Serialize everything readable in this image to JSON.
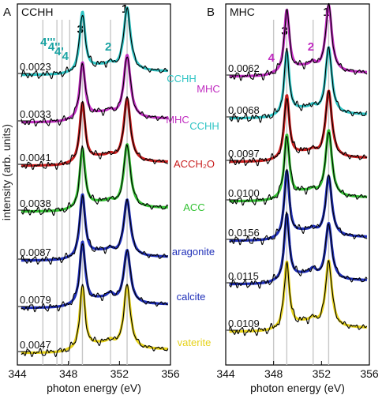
{
  "figure": {
    "ylabel": "intensity (arb. units)",
    "xlabel": "photon energy (eV)"
  },
  "chart_data": [
    {
      "type": "line",
      "panel_letter": "A",
      "panel_title": "CCHH",
      "xlim": [
        344,
        356
      ],
      "x_ticks": [
        344,
        348,
        352,
        356
      ],
      "xlabel": "photon energy (eV)",
      "ylabel": "intensity (arb. units)",
      "gridlines_x": [
        346.0,
        347.1,
        347.5,
        348.1,
        349.1,
        351.3,
        352.6
      ],
      "peak_labels": [
        {
          "text": "1",
          "x": 352.6,
          "color": "#000000"
        },
        {
          "text": "2",
          "x": 351.3,
          "color": "#1aa3a3"
        },
        {
          "text": "3",
          "x": 349.1,
          "color": "#000000"
        },
        {
          "text": "4",
          "x": 348.0,
          "color": "#1aa3a3"
        },
        {
          "text": "4'",
          "x": 347.4,
          "color": "#1aa3a3"
        },
        {
          "text": "4''",
          "x": 346.9,
          "color": "#1aa3a3"
        },
        {
          "text": "4'''",
          "x": 346.3,
          "color": "#1aa3a3"
        }
      ],
      "series": [
        {
          "name": "CCHH",
          "color": "#2ec4c4",
          "scale_label": "0.0023",
          "peaks": {
            "p1": 1.0,
            "p2": 0.35,
            "p3": 0.95,
            "p4": 0.05
          }
        },
        {
          "name": "MHC",
          "color": "#c02cc0",
          "scale_label": "0.0033",
          "peaks": {
            "p1": 1.0,
            "p2": 0.35,
            "p3": 0.9,
            "p4": 0.1
          }
        },
        {
          "name": "ACCH₂O",
          "color": "#c81e1e",
          "scale_label": "0.0041",
          "peaks": {
            "p1": 1.0,
            "p2": 0.3,
            "p3": 0.95,
            "p4": 0.05
          }
        },
        {
          "name": "ACC",
          "color": "#33c233",
          "scale_label": "0.0038",
          "peaks": {
            "p1": 1.0,
            "p2": 0.3,
            "p3": 0.95,
            "p4": 0.05
          }
        },
        {
          "name": "aragonite",
          "color": "#1f2fb8",
          "scale_label": "0.0087",
          "peaks": {
            "p1": 0.9,
            "p2": 0.35,
            "p3": 1.0,
            "p4": 0.05
          }
        },
        {
          "name": "calcite",
          "color": "#1f2fb8",
          "scale_label": "0.0079",
          "peaks": {
            "p1": 0.85,
            "p2": 0.55,
            "p3": 1.0,
            "p4": 0.1
          }
        },
        {
          "name": "vaterite",
          "color": "#e6d21a",
          "scale_label": "0.0047",
          "peaks": {
            "p1": 1.0,
            "p2": 0.4,
            "p3": 1.0,
            "p4": 0.1
          }
        }
      ]
    },
    {
      "type": "line",
      "panel_letter": "B",
      "panel_title": "MHC",
      "xlim": [
        344,
        356
      ],
      "x_ticks": [
        344,
        348,
        352,
        356
      ],
      "xlabel": "photon energy (eV)",
      "gridlines_x": [
        348.0,
        349.1,
        351.3,
        352.6
      ],
      "peak_labels": [
        {
          "text": "1",
          "x": 352.6,
          "color": "#000000"
        },
        {
          "text": "2",
          "x": 351.3,
          "color": "#c02cc0"
        },
        {
          "text": "3",
          "x": 349.1,
          "color": "#000000"
        },
        {
          "text": "4",
          "x": 348.0,
          "color": "#c02cc0"
        }
      ],
      "series": [
        {
          "name": "MHC",
          "color": "#c02cc0",
          "scale_label": "0.0062",
          "peaks": {
            "p1": 1.0,
            "p2": 0.45,
            "p3": 0.95,
            "p4": 0.15
          }
        },
        {
          "name": "CCHH",
          "color": "#2ec4c4",
          "scale_label": "0.0068",
          "peaks": {
            "p1": 1.0,
            "p2": 0.35,
            "p3": 0.95,
            "p4": 0.05
          }
        },
        {
          "name": "",
          "color": "#c81e1e",
          "scale_label": "0.0097",
          "peaks": {
            "p1": 1.0,
            "p2": 0.3,
            "p3": 0.95,
            "p4": 0.05
          }
        },
        {
          "name": "",
          "color": "#33c233",
          "scale_label": "0.0100",
          "peaks": {
            "p1": 1.0,
            "p2": 0.3,
            "p3": 0.95,
            "p4": 0.05
          }
        },
        {
          "name": "",
          "color": "#1f2fb8",
          "scale_label": "0.0156",
          "peaks": {
            "p1": 0.9,
            "p2": 0.35,
            "p3": 1.0,
            "p4": 0.05
          }
        },
        {
          "name": "",
          "color": "#1f2fb8",
          "scale_label": "0.0115",
          "peaks": {
            "p1": 0.85,
            "p2": 0.55,
            "p3": 1.0,
            "p4": 0.1
          }
        },
        {
          "name": "",
          "color": "#e6d21a",
          "scale_label": "0.0109",
          "peaks": {
            "p1": 1.0,
            "p2": 0.4,
            "p3": 1.0,
            "p4": 0.1
          }
        }
      ]
    }
  ]
}
